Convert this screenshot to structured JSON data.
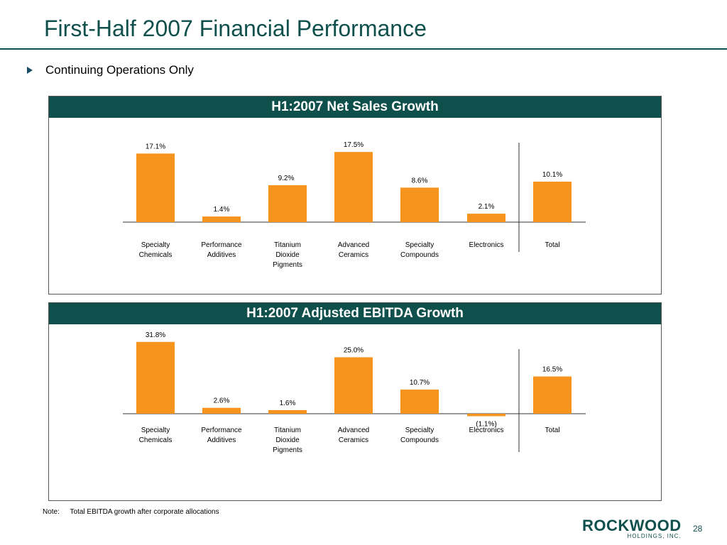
{
  "slide": {
    "title": "First-Half 2007 Financial Performance",
    "bullet": "Continuing Operations Only",
    "note_label": "Note:",
    "note_text": "Total EBITDA growth after corporate allocations",
    "logo_word": "ROCKWOOD",
    "logo_sub": "HOLDINGS, INC.",
    "page_number": "28"
  },
  "colors": {
    "bar": "#f7941d",
    "header": "#0f4f4c"
  },
  "chart_data": [
    {
      "type": "bar",
      "title": "H1:2007 Net Sales Growth",
      "categories": [
        [
          "Specialty",
          "Chemicals"
        ],
        [
          "Performance",
          "Additives"
        ],
        [
          "Titanium",
          "Dioxide",
          "Pigments"
        ],
        [
          "Advanced",
          "Ceramics"
        ],
        [
          "Specialty",
          "Compounds"
        ],
        [
          "Electronics"
        ],
        [
          "Total"
        ]
      ],
      "values": [
        17.1,
        1.4,
        9.2,
        17.5,
        8.6,
        2.1,
        10.1
      ],
      "labels": [
        "17.1%",
        "1.4%",
        "9.2%",
        "17.5%",
        "8.6%",
        "2.1%",
        "10.1%"
      ],
      "ylim": [
        0,
        20
      ]
    },
    {
      "type": "bar",
      "title": "H1:2007 Adjusted EBITDA Growth",
      "categories": [
        [
          "Specialty",
          "Chemicals"
        ],
        [
          "Performance",
          "Additives"
        ],
        [
          "Titanium",
          "Dioxide",
          "Pigments"
        ],
        [
          "Advanced",
          "Ceramics"
        ],
        [
          "Specialty",
          "Compounds"
        ],
        [
          "Electronics"
        ],
        [
          "Total"
        ]
      ],
      "values": [
        31.8,
        2.6,
        1.6,
        25.0,
        10.7,
        -1.1,
        16.5
      ],
      "labels": [
        "31.8%",
        "2.6%",
        "1.6%",
        "25.0%",
        "10.7%",
        "(1.1%)",
        "16.5%"
      ],
      "ylim": [
        -2,
        33
      ]
    }
  ]
}
